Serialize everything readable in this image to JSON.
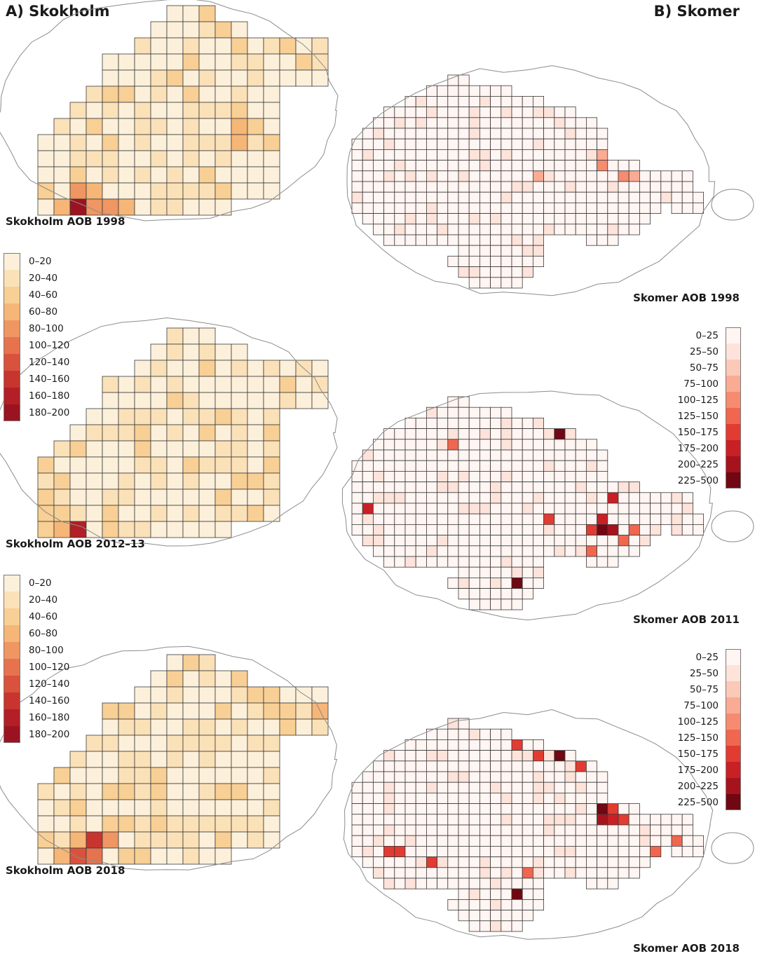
{
  "headings": {
    "skokholm": "A) Skokholm",
    "skomer": "B) Skomer"
  },
  "skokholm_legend": {
    "labels": [
      "0–20",
      "20–40",
      "40–60",
      "60–80",
      "80–100",
      "100–120",
      "120–140",
      "140–160",
      "160–180",
      "180–200"
    ],
    "colors": [
      "#fcf0da",
      "#fbe1b8",
      "#f8cf95",
      "#f5b677",
      "#ef9662",
      "#e6734e",
      "#d9523d",
      "#c8352f",
      "#b21f26",
      "#9b1320"
    ]
  },
  "skomer_legend": {
    "labels": [
      "0–25",
      "25–50",
      "50–75",
      "75–100",
      "100–125",
      "125–150",
      "150–175",
      "175–200",
      "200–225",
      "225–500"
    ],
    "colors": [
      "#fff5f2",
      "#fde3da",
      "#fbc9b7",
      "#f9ab93",
      "#f78b70",
      "#f0664f",
      "#e23b31",
      "#c92025",
      "#a6131c",
      "#700712"
    ]
  },
  "maps": [
    {
      "id": "skokholm-1998",
      "caption": "Skokholm AOB 1998"
    },
    {
      "id": "skokholm-2012",
      "caption": "Skokholm AOB 2012–13"
    },
    {
      "id": "skokholm-2018",
      "caption": "Skokholm AOB 2018"
    },
    {
      "id": "skomer-1998",
      "caption": "Skomer AOB 1998"
    },
    {
      "id": "skomer-2011",
      "caption": "Skomer AOB 2011"
    },
    {
      "id": "skomer-2018",
      "caption": "Skomer AOB 2018"
    }
  ],
  "skokholm_hotspots": [
    {
      "map": "skokholm-1998",
      "cells": [
        {
          "row": 12,
          "col": 4,
          "class": 9
        },
        {
          "row": 11,
          "col": 4,
          "class": 4
        },
        {
          "row": 12,
          "col": 5,
          "class": 4
        },
        {
          "row": 12,
          "col": 6,
          "class": 4
        },
        {
          "row": 12,
          "col": 3,
          "class": 3
        },
        {
          "row": 12,
          "col": 7,
          "class": 3
        },
        {
          "row": 11,
          "col": 5,
          "class": 3
        },
        {
          "row": 7,
          "col": 14,
          "class": 3
        },
        {
          "row": 8,
          "col": 14,
          "class": 3
        },
        {
          "row": 6,
          "col": 14,
          "class": 2
        }
      ]
    },
    {
      "map": "skokholm-2012",
      "cells": [
        {
          "row": 12,
          "col": 4,
          "class": 8
        },
        {
          "row": 12,
          "col": 3,
          "class": 3
        },
        {
          "row": 9,
          "col": 15,
          "class": 2
        },
        {
          "row": 3,
          "col": 17,
          "class": 2
        },
        {
          "row": 5,
          "col": 13,
          "class": 2
        },
        {
          "row": 6,
          "col": 8,
          "class": 2
        }
      ]
    },
    {
      "map": "skokholm-2018",
      "cells": [
        {
          "row": 11,
          "col": 5,
          "class": 7
        },
        {
          "row": 12,
          "col": 4,
          "class": 6
        },
        {
          "row": 12,
          "col": 5,
          "class": 5
        },
        {
          "row": 11,
          "col": 6,
          "class": 4
        },
        {
          "row": 11,
          "col": 4,
          "class": 3
        },
        {
          "row": 12,
          "col": 3,
          "class": 3
        },
        {
          "row": 3,
          "col": 19,
          "class": 3
        },
        {
          "row": 12,
          "col": 7,
          "class": 2
        }
      ]
    }
  ],
  "skomer_hotspots": [
    {
      "map": "skomer-1998",
      "cells": [
        {
          "row": 8,
          "col": 23,
          "class": 4
        },
        {
          "row": 9,
          "col": 25,
          "class": 4
        },
        {
          "row": 9,
          "col": 26,
          "class": 3
        },
        {
          "row": 7,
          "col": 23,
          "class": 3
        },
        {
          "row": 9,
          "col": 17,
          "class": 3
        },
        {
          "row": 15,
          "col": 20,
          "class": 3
        }
      ]
    },
    {
      "map": "skomer-2011",
      "cells": [
        {
          "row": 3,
          "col": 19,
          "class": 9
        },
        {
          "row": 12,
          "col": 23,
          "class": 9
        },
        {
          "row": 12,
          "col": 24,
          "class": 8
        },
        {
          "row": 17,
          "col": 15,
          "class": 9
        },
        {
          "row": 10,
          "col": 1,
          "class": 7
        },
        {
          "row": 11,
          "col": 23,
          "class": 7
        },
        {
          "row": 9,
          "col": 24,
          "class": 7
        },
        {
          "row": 12,
          "col": 22,
          "class": 6
        },
        {
          "row": 11,
          "col": 18,
          "class": 6
        },
        {
          "row": 15,
          "col": 2,
          "class": 6
        },
        {
          "row": 4,
          "col": 9,
          "class": 5
        },
        {
          "row": 13,
          "col": 25,
          "class": 5
        },
        {
          "row": 12,
          "col": 26,
          "class": 5
        },
        {
          "row": 14,
          "col": 22,
          "class": 5
        },
        {
          "row": 17,
          "col": 19,
          "class": 5
        },
        {
          "row": 13,
          "col": 30,
          "class": 5
        }
      ]
    },
    {
      "map": "skomer-2018",
      "cells": [
        {
          "row": 3,
          "col": 19,
          "class": 9
        },
        {
          "row": 8,
          "col": 23,
          "class": 9
        },
        {
          "row": 9,
          "col": 23,
          "class": 8
        },
        {
          "row": 9,
          "col": 24,
          "class": 7
        },
        {
          "row": 8,
          "col": 24,
          "class": 6
        },
        {
          "row": 9,
          "col": 25,
          "class": 6
        },
        {
          "row": 16,
          "col": 15,
          "class": 9
        },
        {
          "row": 4,
          "col": 21,
          "class": 6
        },
        {
          "row": 3,
          "col": 17,
          "class": 6
        },
        {
          "row": 2,
          "col": 15,
          "class": 6
        },
        {
          "row": 12,
          "col": 3,
          "class": 6
        },
        {
          "row": 12,
          "col": 4,
          "class": 6
        },
        {
          "row": 13,
          "col": 7,
          "class": 6
        },
        {
          "row": 12,
          "col": 28,
          "class": 5
        },
        {
          "row": 11,
          "col": 30,
          "class": 5
        },
        {
          "row": 14,
          "col": 16,
          "class": 5
        }
      ]
    }
  ]
}
